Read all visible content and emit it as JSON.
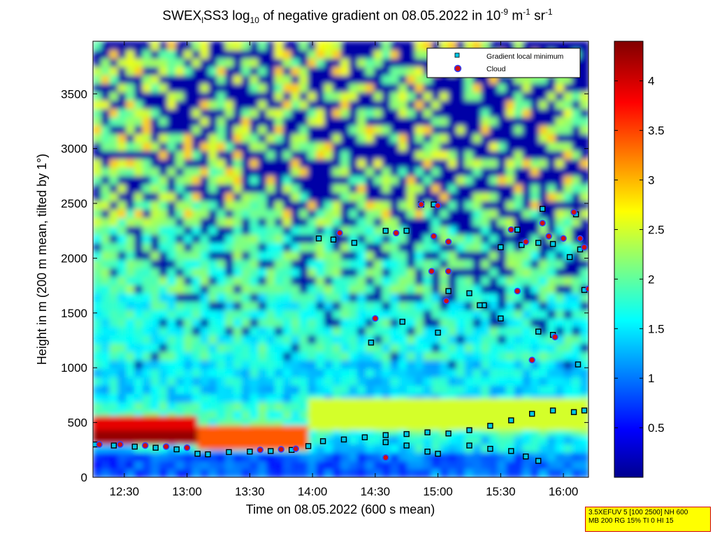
{
  "title": {
    "prefix": "SWEX",
    "sub1": "l",
    "mid": "SS3 log",
    "sub2": "10",
    "rest": " of negative gradient on 08.05.2022 in 10",
    "sup1": "-9",
    "unit1": " m",
    "sup2": "-1",
    "unit2": " sr",
    "sup3": "-1"
  },
  "param_box": {
    "line1": "3.5XEFUV 5 [100 2500] NH 600",
    "line2": "MB 200 RG 15% TI 0 HI 15"
  },
  "colors": {
    "gradient_min_marker": "#00c8e6",
    "cloud_marker": "#d01010",
    "cloud_edge": "#3040ff"
  },
  "chart_data": {
    "type": "heatmap",
    "xlabel": "Time on 08.05.2022 (600 s mean)",
    "ylabel": "Height in m (200 m mean, tilted by 1°)",
    "x_range": [
      "12:15",
      "16:12"
    ],
    "x_ticks": [
      "12:30",
      "13:00",
      "13:30",
      "14:00",
      "14:30",
      "15:00",
      "15:30",
      "16:00"
    ],
    "y_range": [
      0,
      3980
    ],
    "y_ticks": [
      0,
      500,
      1000,
      1500,
      2000,
      2500,
      3000,
      3500
    ],
    "colorbar": {
      "range": [
        0,
        4.4
      ],
      "ticks": [
        "0.5",
        "1",
        "1.5",
        "2",
        "2.5",
        "3",
        "3.5",
        "4"
      ],
      "colormap": "jet"
    },
    "legend": {
      "placement": "top-right",
      "entries": [
        {
          "label": "Gradient local minimum",
          "marker": "square"
        },
        {
          "label": "Cloud",
          "marker": "circle"
        }
      ]
    },
    "series": [
      {
        "name": "Gradient local minimum",
        "points": [
          [
            "12:16",
            300
          ],
          [
            "12:25",
            290
          ],
          [
            "12:35",
            280
          ],
          [
            "12:45",
            270
          ],
          [
            "12:55",
            255
          ],
          [
            "13:05",
            215
          ],
          [
            "13:10",
            210
          ],
          [
            "13:20",
            230
          ],
          [
            "13:30",
            235
          ],
          [
            "13:40",
            240
          ],
          [
            "13:50",
            250
          ],
          [
            "13:58",
            285
          ],
          [
            "14:05",
            330
          ],
          [
            "14:15",
            345
          ],
          [
            "14:25",
            365
          ],
          [
            "14:35",
            385
          ],
          [
            "14:45",
            395
          ],
          [
            "14:55",
            410
          ],
          [
            "15:05",
            400
          ],
          [
            "15:15",
            430
          ],
          [
            "15:25",
            470
          ],
          [
            "15:35",
            520
          ],
          [
            "15:45",
            580
          ],
          [
            "15:55",
            610
          ],
          [
            "16:05",
            595
          ],
          [
            "16:10",
            610
          ],
          [
            "14:35",
            320
          ],
          [
            "14:45",
            290
          ],
          [
            "14:55",
            235
          ],
          [
            "15:00",
            215
          ],
          [
            "15:15",
            290
          ],
          [
            "15:25",
            260
          ],
          [
            "15:35",
            240
          ],
          [
            "15:42",
            190
          ],
          [
            "15:48",
            150
          ],
          [
            "14:03",
            2180
          ],
          [
            "14:10",
            2170
          ],
          [
            "14:20",
            2140
          ],
          [
            "14:35",
            2250
          ],
          [
            "14:45",
            2250
          ],
          [
            "14:52",
            2490
          ],
          [
            "14:58",
            2490
          ],
          [
            "15:05",
            1700
          ],
          [
            "15:15",
            1680
          ],
          [
            "15:22",
            1570
          ],
          [
            "15:30",
            1450
          ],
          [
            "15:40",
            2120
          ],
          [
            "15:48",
            2140
          ],
          [
            "15:55",
            2130
          ],
          [
            "16:03",
            2010
          ],
          [
            "16:08",
            2080
          ],
          [
            "14:28",
            1230
          ],
          [
            "14:43",
            1420
          ],
          [
            "15:00",
            1320
          ],
          [
            "15:48",
            1330
          ],
          [
            "15:55",
            1300
          ],
          [
            "16:07",
            1030
          ],
          [
            "16:10",
            1710
          ],
          [
            "15:38",
            2260
          ],
          [
            "15:50",
            2450
          ],
          [
            "16:06",
            2400
          ],
          [
            "15:30",
            2100
          ],
          [
            "15:20",
            1570
          ]
        ]
      },
      {
        "name": "Cloud",
        "points": [
          [
            "12:18",
            300
          ],
          [
            "12:28",
            300
          ],
          [
            "12:40",
            290
          ],
          [
            "12:50",
            280
          ],
          [
            "13:00",
            270
          ],
          [
            "13:35",
            250
          ],
          [
            "13:45",
            255
          ],
          [
            "13:52",
            260
          ],
          [
            "14:13",
            2230
          ],
          [
            "14:40",
            2230
          ],
          [
            "14:52",
            2490
          ],
          [
            "15:00",
            2480
          ],
          [
            "14:57",
            1880
          ],
          [
            "15:05",
            1880
          ],
          [
            "14:58",
            2200
          ],
          [
            "15:04",
            1610
          ],
          [
            "15:42",
            2150
          ],
          [
            "15:53",
            2200
          ],
          [
            "16:00",
            2180
          ],
          [
            "16:05",
            2420
          ],
          [
            "16:08",
            2180
          ],
          [
            "15:50",
            2320
          ],
          [
            "15:45",
            1070
          ],
          [
            "15:38",
            1700
          ],
          [
            "15:56",
            1280
          ],
          [
            "16:12",
            1720
          ],
          [
            "14:30",
            1450
          ],
          [
            "14:35",
            180
          ],
          [
            "16:10",
            2100
          ],
          [
            "15:05",
            2150
          ],
          [
            "15:35",
            2260
          ]
        ]
      }
    ]
  }
}
